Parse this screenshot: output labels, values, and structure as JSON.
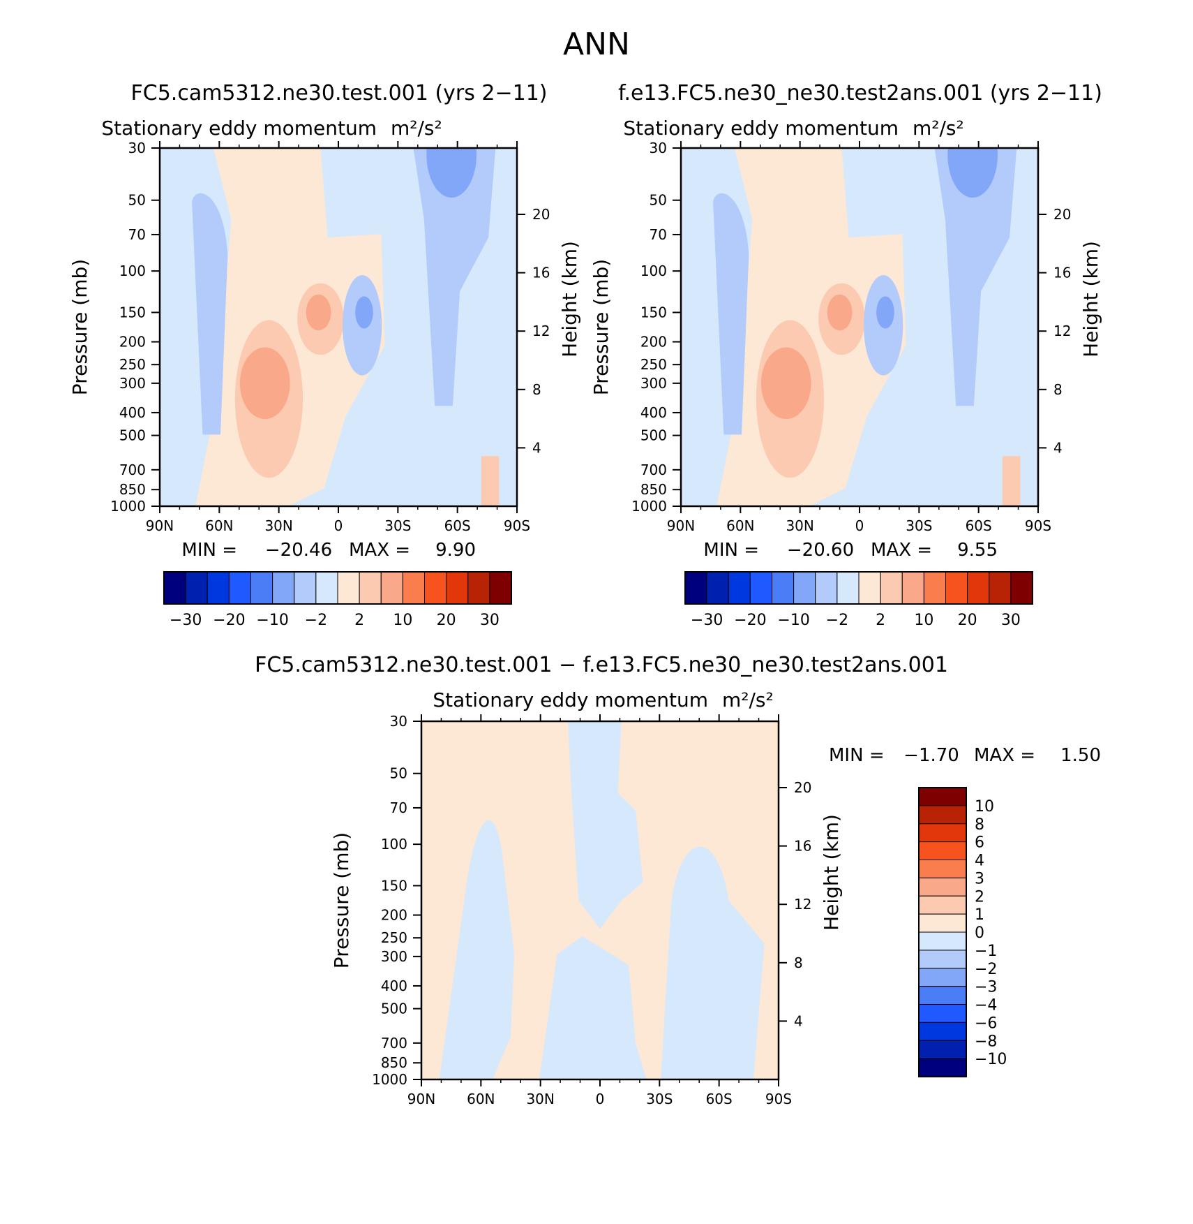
{
  "figure": {
    "title": "ANN",
    "diff_title": "FC5.cam5312.ne30.test.001 − f.e13.FC5.ne30_ne30.test2ans.001"
  },
  "chart_data": [
    {
      "type": "heatmap",
      "case": "FC5.cam5312.ne30.test.001 (yrs 2−11)",
      "subtitle": "Stationary eddy momentum",
      "units": "m²/s²",
      "xlabel": "",
      "ylabel": "Pressure (mb)",
      "ylabel_right": "Height (km)",
      "x_ticks": [
        "90N",
        "60N",
        "30N",
        "0",
        "30S",
        "60S",
        "90S"
      ],
      "y_ticks": [
        30,
        50,
        70,
        100,
        150,
        200,
        250,
        300,
        400,
        500,
        700,
        850,
        1000
      ],
      "height_ticks": [
        20,
        16,
        12,
        8,
        4
      ],
      "min_label": "MIN =",
      "min": "−20.46",
      "max_label": "MAX =",
      "max": "9.90",
      "colorbar_labels": [
        "−30",
        "−20",
        "−10",
        "−2",
        "2",
        "10",
        "20",
        "30"
      ],
      "features": [
        {
          "lat": -50,
          "p": 30,
          "value": -12
        },
        {
          "lat": -12,
          "p": 150,
          "value": -14
        },
        {
          "lat": 10,
          "p": 150,
          "value": 7
        },
        {
          "lat": 35,
          "p": 300,
          "value": 8
        },
        {
          "lat": 65,
          "p": 300,
          "value": -5
        }
      ]
    },
    {
      "type": "heatmap",
      "case": "f.e13.FC5.ne30_ne30.test2ans.001 (yrs 2−11)",
      "subtitle": "Stationary eddy momentum",
      "units": "m²/s²",
      "xlabel": "",
      "ylabel": "Pressure (mb)",
      "ylabel_right": "Height (km)",
      "x_ticks": [
        "90N",
        "60N",
        "30N",
        "0",
        "30S",
        "60S",
        "90S"
      ],
      "y_ticks": [
        30,
        50,
        70,
        100,
        150,
        200,
        250,
        300,
        400,
        500,
        700,
        850,
        1000
      ],
      "height_ticks": [
        20,
        16,
        12,
        8,
        4
      ],
      "min_label": "MIN =",
      "min": "−20.60",
      "max_label": "MAX =",
      "max": "9.55",
      "colorbar_labels": [
        "−30",
        "−20",
        "−10",
        "−2",
        "2",
        "10",
        "20",
        "30"
      ],
      "features": [
        {
          "lat": -50,
          "p": 30,
          "value": -12
        },
        {
          "lat": -12,
          "p": 150,
          "value": -14
        },
        {
          "lat": 10,
          "p": 150,
          "value": 7
        },
        {
          "lat": 35,
          "p": 300,
          "value": 8
        },
        {
          "lat": 65,
          "p": 300,
          "value": -5
        }
      ]
    },
    {
      "type": "heatmap",
      "case": "",
      "subtitle": "Stationary eddy momentum",
      "units": "m²/s²",
      "xlabel": "",
      "ylabel": "Pressure (mb)",
      "ylabel_right": "Height (km)",
      "x_ticks": [
        "90N",
        "60N",
        "30N",
        "0",
        "30S",
        "60S",
        "90S"
      ],
      "y_ticks": [
        30,
        50,
        70,
        100,
        150,
        200,
        250,
        300,
        400,
        500,
        700,
        850,
        1000
      ],
      "height_ticks": [
        20,
        16,
        12,
        8,
        4
      ],
      "min_label": "MIN =",
      "min": "−1.70",
      "max_label": "MAX =",
      "max": "1.50",
      "colorbar_labels": [
        "10",
        "8",
        "6",
        "4",
        "3",
        "2",
        "1",
        "0",
        "−1",
        "−2",
        "−3",
        "−4",
        "−6",
        "−8",
        "−10"
      ],
      "features": [
        {
          "lat": 50,
          "p": 300,
          "value": -0.5
        },
        {
          "lat": 0,
          "p": 50,
          "value": -0.5
        },
        {
          "lat": -55,
          "p": 400,
          "value": -0.5
        }
      ]
    }
  ],
  "colors": {
    "top_palette": [
      "#00007f",
      "#0020b0",
      "#0038e0",
      "#2059ff",
      "#4a7cf5",
      "#82a6f8",
      "#b2cbfa",
      "#d6e8fb",
      "#fde8d6",
      "#fccab0",
      "#faa88a",
      "#fa7d4e",
      "#f6531f",
      "#e2370b",
      "#b82306",
      "#7e0000"
    ],
    "diff_palette": [
      "#7e0000",
      "#b82306",
      "#e2370b",
      "#f6531f",
      "#fa7d4e",
      "#faa88a",
      "#fccab0",
      "#fde8d6",
      "#d6e8fb",
      "#b2cbfa",
      "#82a6f8",
      "#4a7cf5",
      "#2059ff",
      "#0038e0",
      "#0020b0",
      "#00007f"
    ]
  }
}
